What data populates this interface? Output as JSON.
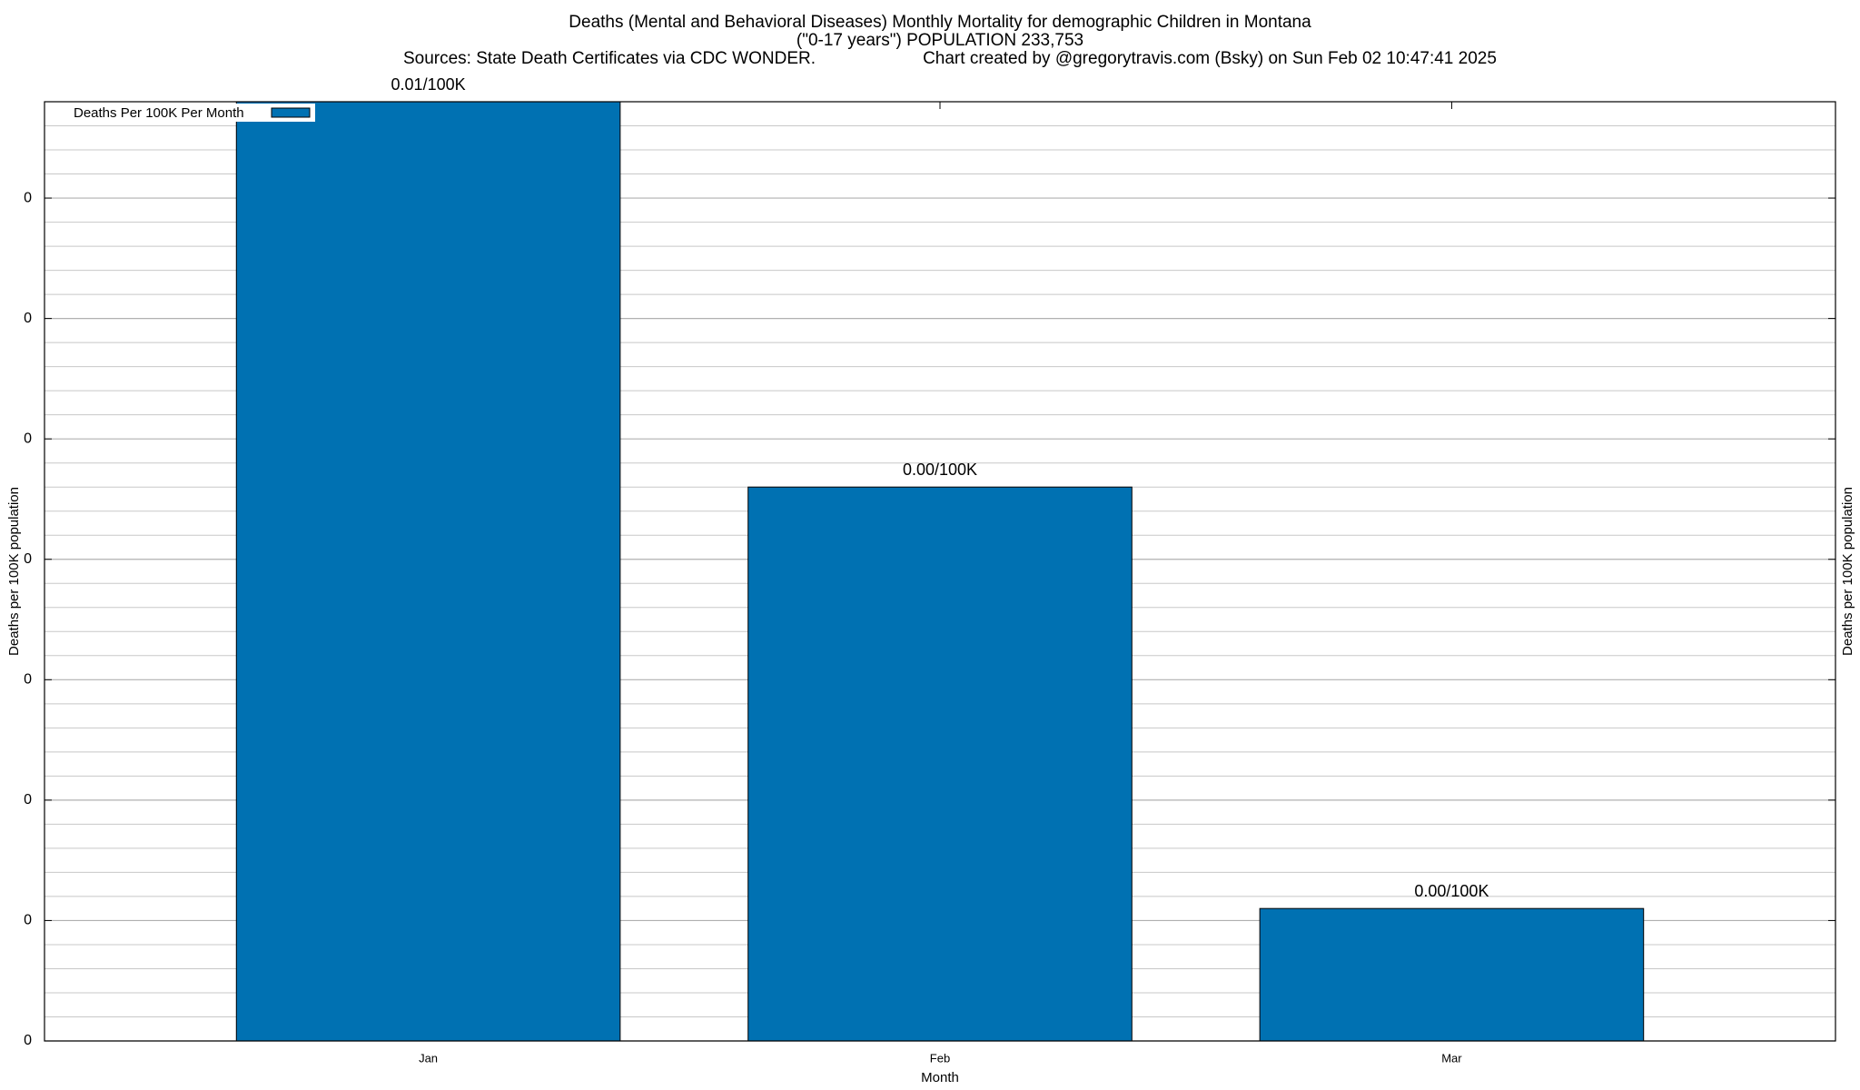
{
  "chart_data": {
    "type": "bar",
    "title": "Deaths (Mental and Behavioral Diseases) Monthly Mortality for demographic Children in Montana",
    "subtitle": "(\"0-17 years\") POPULATION 233,753",
    "sources": "Sources: State Death Certificates via CDC WONDER.",
    "credit": "Chart created by @gregorytravis.com (Bsky) on Sun Feb 02 10:47:41 2025",
    "x_label": "Month",
    "y_label": "Deaths per 100K population",
    "y2_label": "Deaths per 100K population",
    "categories": [
      "Jan",
      "Feb",
      "Mar"
    ],
    "series": [
      {
        "name": "Deaths Per 100K Per Month",
        "color": "#0071b2",
        "values": [
          0.0078,
          0.0046,
          0.0011
        ],
        "value_labels": [
          "0.01/100K",
          "0.00/100K",
          "0.00/100K"
        ]
      }
    ],
    "ylim": [
      0,
      0.0078
    ],
    "yticks": [
      0,
      {
        "value": 0.001,
        "label": "0"
      },
      {
        "value": 0.002,
        "label": "0"
      },
      {
        "value": 0.003,
        "label": "0"
      },
      {
        "value": 0.004,
        "label": "0"
      },
      {
        "value": 0.005,
        "label": "0"
      },
      {
        "value": 0.006,
        "label": "0"
      },
      {
        "value": 0.007,
        "label": "0"
      }
    ],
    "grid": true,
    "legend": "top-left"
  }
}
